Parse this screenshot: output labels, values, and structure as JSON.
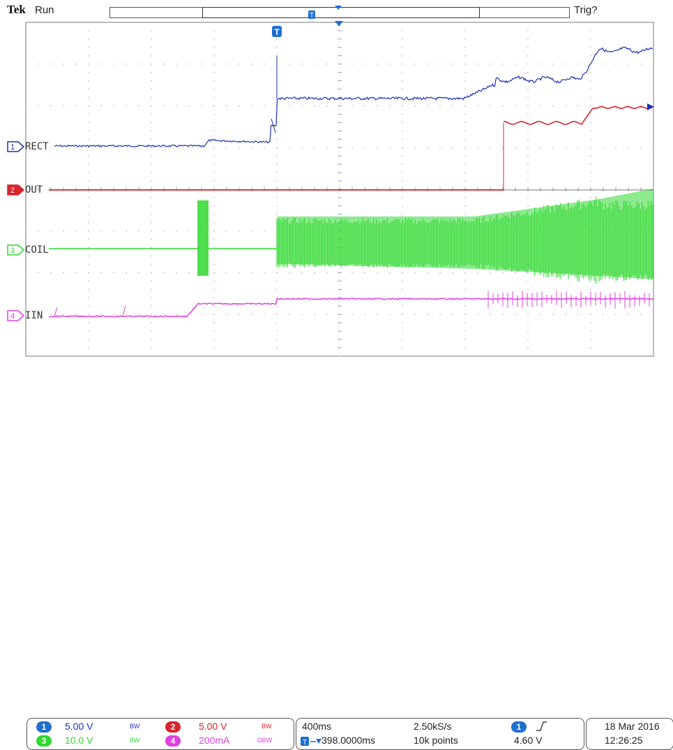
{
  "header": {
    "brand": "Tek",
    "acq_state": "Run",
    "trigger_status": "Trig?"
  },
  "colors": {
    "ch1": "#1f2fb8",
    "ch2": "#d8242c",
    "ch3": "#2fd82f",
    "ch4": "#e040e0",
    "grid": "#9a9a9a"
  },
  "channels": [
    {
      "number": "1",
      "label": "RECT",
      "scale": "5.00 V",
      "bw": "BW"
    },
    {
      "number": "2",
      "label": "OUT",
      "scale": "5.00 V",
      "bw": "BW"
    },
    {
      "number": "3",
      "label": "COIL",
      "scale": "10.0 V",
      "bw": "BW"
    },
    {
      "number": "4",
      "label": "IIN",
      "scale": "200mA",
      "bw": "ΩBW"
    }
  ],
  "timebase": {
    "scale": "400ms",
    "sample_rate": "2.50kS/s",
    "delay": "398.0000ms",
    "record_length": "10k points"
  },
  "trigger": {
    "source": "1",
    "slope": "rising",
    "level": "4.60 V"
  },
  "datetime": {
    "date": "18 Mar  2016",
    "time": "12:26:25"
  },
  "trigger_marker": "T"
}
